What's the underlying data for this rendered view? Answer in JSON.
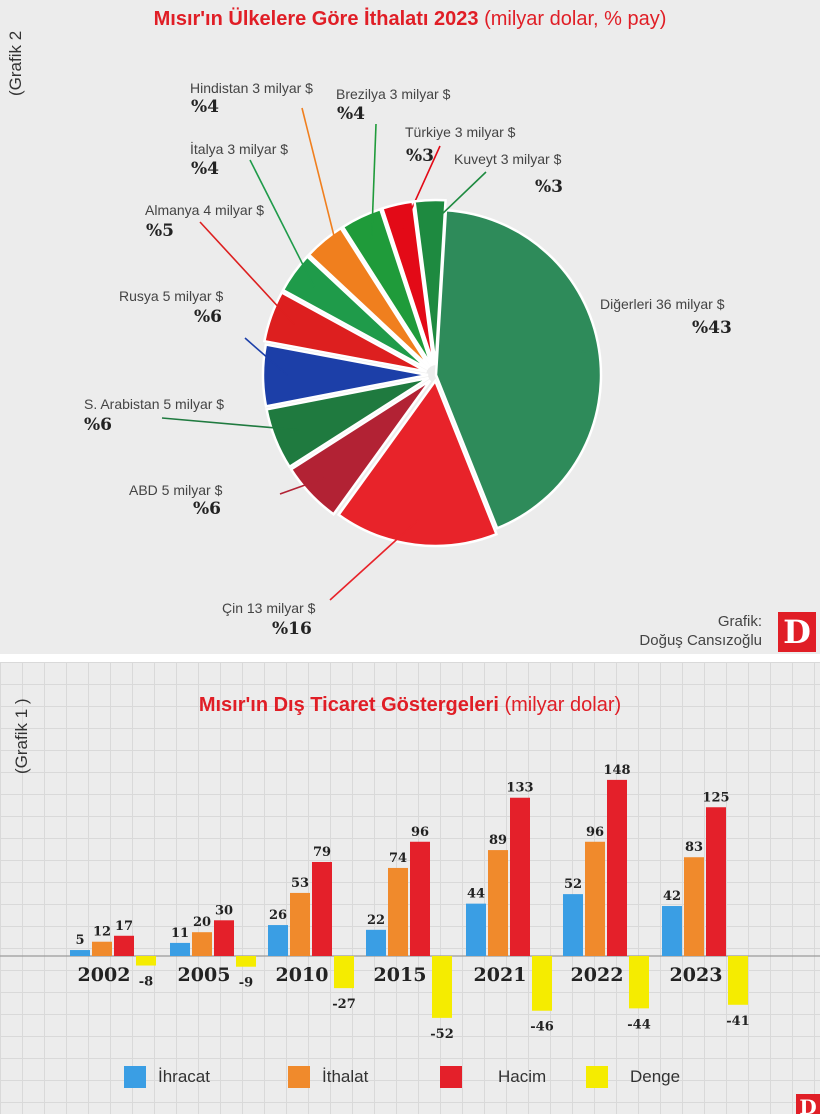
{
  "brand": {
    "logo_letter": "D",
    "accent": "#e01e26"
  },
  "chart_data": [
    {
      "type": "pie",
      "side_label": "(Grafik 2",
      "title_bold": "Mısır'ın Ülkelere Göre İthalatı 2023",
      "title_rest": " (milyar dolar, % pay)",
      "slices": [
        {
          "name": "Diğerleri",
          "label": "Diğerleri 36 milyar $",
          "pct_label": "%43",
          "value": 43,
          "color": "#2e8b5a"
        },
        {
          "name": "Çin",
          "label": "Çin 13 milyar $",
          "pct_label": "%16",
          "value": 16,
          "color": "#e8232a"
        },
        {
          "name": "ABD",
          "label": "ABD 5 milyar $",
          "pct_label": "%6",
          "value": 6,
          "color": "#b22234"
        },
        {
          "name": "S. Arabistan",
          "label": "S. Arabistan 5 milyar $",
          "pct_label": "%6",
          "value": 6,
          "color": "#1f7a3f"
        },
        {
          "name": "Rusya",
          "label": "Rusya 5 milyar $",
          "pct_label": "%6",
          "value": 6,
          "color": "#1c3fa8"
        },
        {
          "name": "Almanya",
          "label": "Almanya 4 milyar $",
          "pct_label": "%5",
          "value": 5,
          "color": "#dd1f1f"
        },
        {
          "name": "İtalya",
          "label": "İtalya 3 milyar $",
          "pct_label": "%4",
          "value": 4,
          "color": "#1f9b4a"
        },
        {
          "name": "Hindistan",
          "label": "Hindistan 3 milyar $",
          "pct_label": "%4",
          "value": 4,
          "color": "#f07f1e"
        },
        {
          "name": "Brezilya",
          "label": "Brezilya 3 milyar $",
          "pct_label": "%4",
          "value": 4,
          "color": "#1f9b3a"
        },
        {
          "name": "Türkiye",
          "label": "Türkiye 3 milyar $",
          "pct_label": "%3",
          "value": 3,
          "color": "#e30a17"
        },
        {
          "name": "Kuveyt",
          "label": "Kuveyt 3 milyar $",
          "pct_label": "%3",
          "value": 3,
          "color": "#1e8a40"
        }
      ],
      "credit_line1": "Grafik:",
      "credit_line2": "Doğuş Cansızoğlu"
    },
    {
      "type": "bar",
      "side_label": "(Grafik 1 )",
      "title_bold": "Mısır'ın Dış Ticaret Göstergeleri",
      "title_rest": " (milyar dolar)",
      "categories": [
        "2002",
        "2005",
        "2010",
        "2015",
        "2021",
        "2022",
        "2023"
      ],
      "series": [
        {
          "name": "İhracat",
          "color": "#3a9ee4",
          "values": [
            5,
            11,
            26,
            22,
            44,
            52,
            42
          ]
        },
        {
          "name": "İthalat",
          "color": "#f08a2c",
          "values": [
            12,
            20,
            53,
            74,
            89,
            96,
            83
          ]
        },
        {
          "name": "Hacim",
          "color": "#e4202a",
          "values": [
            17,
            30,
            79,
            96,
            133,
            148,
            125
          ]
        },
        {
          "name": "Denge",
          "color": "#f5ec00",
          "values": [
            -8,
            -9,
            -27,
            -52,
            -46,
            -44,
            -41
          ]
        }
      ]
    }
  ]
}
